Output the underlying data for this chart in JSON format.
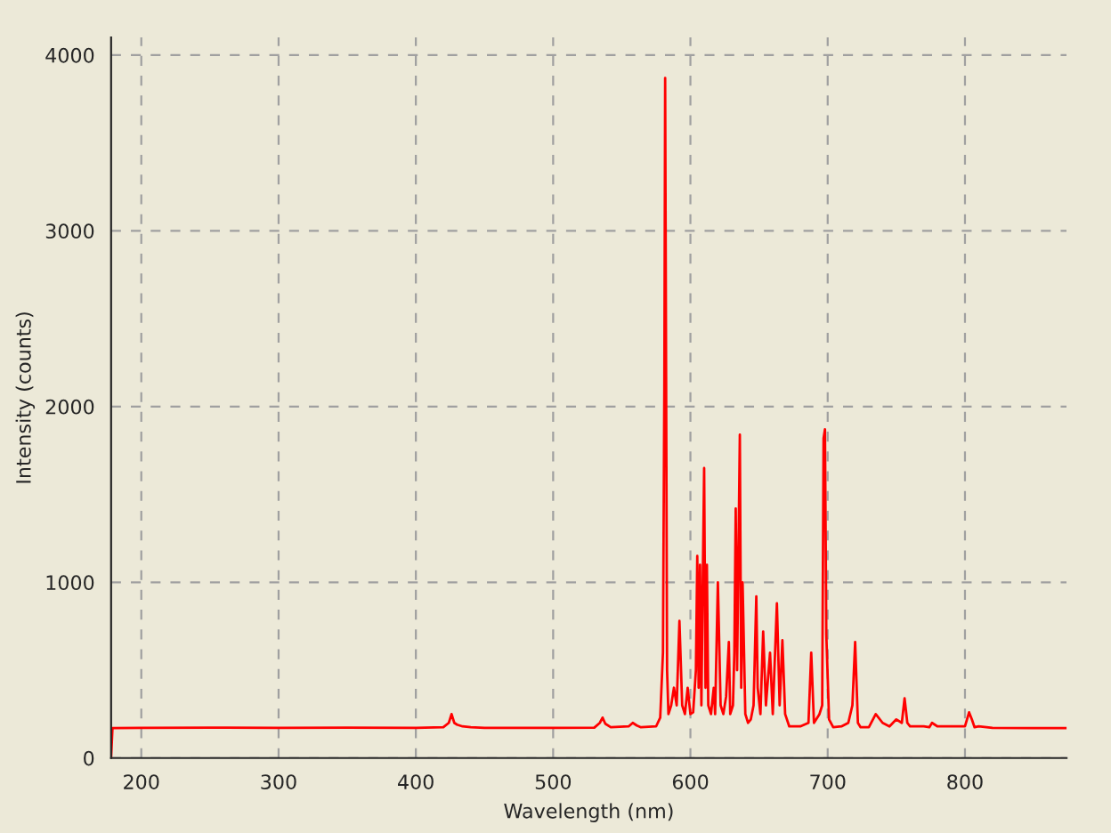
{
  "chart_data": {
    "type": "line",
    "xlabel": "Wavelength (nm)",
    "ylabel": "Intensity (counts)",
    "xlim": [
      178,
      874
    ],
    "ylim": [
      0,
      4100
    ],
    "xticks": [
      200,
      300,
      400,
      500,
      600,
      700,
      800
    ],
    "yticks": [
      0,
      1000,
      2000,
      3000,
      4000
    ],
    "grid": true,
    "marker": "none",
    "line_style": "solid",
    "series": [
      {
        "color": "#ff0000",
        "x": [
          178,
          179,
          200,
          250,
          300,
          350,
          400,
          420,
          424,
          426,
          428,
          430,
          434,
          440,
          450,
          500,
          530,
          534,
          536,
          538,
          542,
          555,
          558,
          561,
          564,
          575,
          578,
          580,
          581,
          581.6,
          582.3,
          583,
          584,
          586,
          588,
          590,
          592,
          594,
          596,
          598,
          600,
          602,
          604,
          605,
          606,
          607,
          608,
          609,
          610,
          611,
          612,
          613,
          615,
          617,
          618,
          620,
          622,
          624,
          626,
          628,
          629,
          631,
          632,
          633,
          634,
          636,
          637,
          638,
          640,
          642,
          644,
          646,
          648,
          649,
          651,
          653,
          655,
          658,
          660,
          663,
          665,
          667,
          669,
          672,
          680,
          686,
          688,
          690,
          694,
          696,
          697,
          698,
          699,
          701,
          704,
          710,
          715,
          718,
          720,
          722,
          724,
          730,
          735,
          740,
          745,
          750,
          754,
          756,
          758,
          760,
          770,
          774,
          776,
          780,
          800,
          803,
          805,
          807,
          810,
          820,
          850,
          874
        ],
        "values": [
          0,
          170,
          172,
          173,
          172,
          173,
          172,
          175,
          200,
          250,
          200,
          190,
          180,
          175,
          172,
          172,
          173,
          200,
          230,
          195,
          175,
          180,
          200,
          185,
          175,
          180,
          230,
          600,
          2100,
          3870,
          2170,
          500,
          250,
          300,
          400,
          300,
          780,
          300,
          250,
          400,
          250,
          260,
          500,
          1150,
          400,
          1100,
          300,
          1000,
          1650,
          400,
          1100,
          300,
          250,
          400,
          250,
          1000,
          300,
          250,
          350,
          660,
          250,
          300,
          600,
          1420,
          500,
          1840,
          400,
          1000,
          250,
          200,
          220,
          300,
          920,
          400,
          250,
          720,
          300,
          600,
          250,
          880,
          300,
          670,
          250,
          180,
          180,
          200,
          600,
          200,
          250,
          300,
          1820,
          1870,
          700,
          220,
          175,
          180,
          200,
          300,
          660,
          200,
          175,
          175,
          250,
          200,
          180,
          220,
          200,
          340,
          200,
          180,
          180,
          175,
          200,
          180,
          180,
          260,
          220,
          175,
          180,
          172,
          170,
          170
        ]
      }
    ]
  }
}
